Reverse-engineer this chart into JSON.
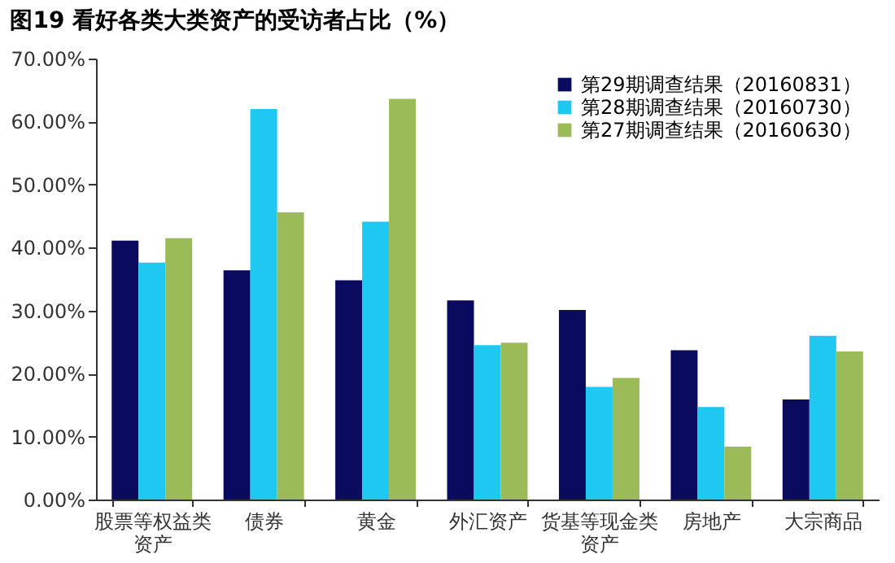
{
  "chart_data": {
    "type": "bar",
    "title": "图19 看好各类大类资产的受访者占比（%）",
    "categories": [
      "股票等权益类资产",
      "债券",
      "黄金",
      "外汇资产",
      "货基等现金类资产",
      "房地产",
      "大宗商品"
    ],
    "series": [
      {
        "name": "第29期调查结果（20160831）",
        "color": "#0a0a5e",
        "values": [
          41.1,
          36.4,
          34.8,
          31.6,
          30.1,
          23.7,
          15.9
        ]
      },
      {
        "name": "第28期调查结果（20160730）",
        "color": "#1ec8f0",
        "values": [
          37.6,
          62.0,
          44.1,
          24.5,
          17.9,
          14.7,
          26.0
        ]
      },
      {
        "name": "第27期调查结果（20160630）",
        "color": "#9bbb59",
        "values": [
          41.5,
          45.6,
          63.6,
          24.9,
          19.3,
          8.4,
          23.5
        ]
      }
    ],
    "ylim": [
      0,
      70
    ],
    "yticks": [
      {
        "value": 0,
        "label": "0.00%"
      },
      {
        "value": 10,
        "label": "10.00%"
      },
      {
        "value": 20,
        "label": "20.00%"
      },
      {
        "value": 30,
        "label": "30.00%"
      },
      {
        "value": 40,
        "label": "40.00%"
      },
      {
        "value": 50,
        "label": "50.00%"
      },
      {
        "value": 60,
        "label": "60.00%"
      },
      {
        "value": 70,
        "label": "70.00%"
      }
    ],
    "grid": false,
    "legend": "top right"
  }
}
